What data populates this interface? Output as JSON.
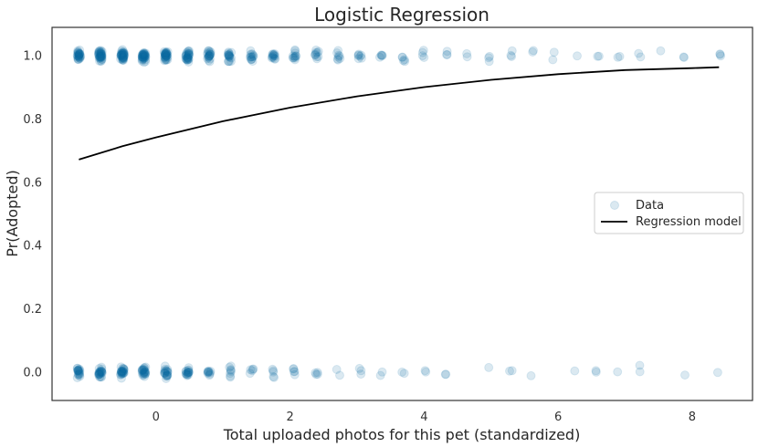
{
  "chart_data": {
    "type": "scatter",
    "title": "Logistic Regression",
    "xlabel": "Total uploaded photos for this pet (standardized)",
    "ylabel": "Pr(Adopted)",
    "xlim": [
      -1.55,
      8.9
    ],
    "ylim": [
      -0.09,
      1.09
    ],
    "xticks": [
      0,
      2,
      4,
      6,
      8
    ],
    "yticks": [
      0.0,
      0.2,
      0.4,
      0.6,
      0.8,
      1.0
    ],
    "ytick_labels": [
      "0.0",
      "0.2",
      "0.4",
      "0.6",
      "0.8",
      "1.0"
    ],
    "grid": false,
    "legend": {
      "position": "center-right",
      "entries": [
        "Data",
        "Regression model"
      ]
    },
    "series": [
      {
        "name": "Data",
        "kind": "scatter",
        "color": "#0b6ea4",
        "x_values": [
          -1.15,
          -0.83,
          -0.5,
          -0.18,
          0.15,
          0.47,
          0.79,
          1.1,
          1.43,
          1.75,
          2.07,
          2.4,
          2.72,
          3.04,
          3.36,
          3.69,
          4.0,
          4.33,
          4.65,
          4.97,
          5.3,
          5.62,
          5.94,
          6.27,
          6.59,
          6.9,
          7.22,
          7.55,
          7.87,
          8.4
        ],
        "count_adopted": [
          30,
          40,
          40,
          38,
          34,
          30,
          22,
          18,
          14,
          14,
          12,
          10,
          8,
          7,
          5,
          5,
          4,
          3,
          2,
          3,
          3,
          2,
          2,
          1,
          2,
          2,
          2,
          1,
          2,
          3
        ],
        "count_not_adopted": [
          20,
          26,
          26,
          24,
          20,
          18,
          10,
          8,
          5,
          5,
          5,
          4,
          2,
          3,
          2,
          2,
          2,
          2,
          0,
          1,
          2,
          1,
          0,
          1,
          2,
          1,
          2,
          0,
          1,
          1
        ]
      },
      {
        "name": "Regression model",
        "kind": "line",
        "color": "#000000",
        "x": [
          -1.15,
          -0.5,
          0.0,
          1.0,
          2.0,
          3.0,
          4.0,
          5.0,
          6.0,
          7.0,
          8.0,
          8.4
        ],
        "y": [
          0.672,
          0.714,
          0.742,
          0.793,
          0.836,
          0.872,
          0.901,
          0.924,
          0.942,
          0.955,
          0.961,
          0.964
        ]
      }
    ]
  }
}
